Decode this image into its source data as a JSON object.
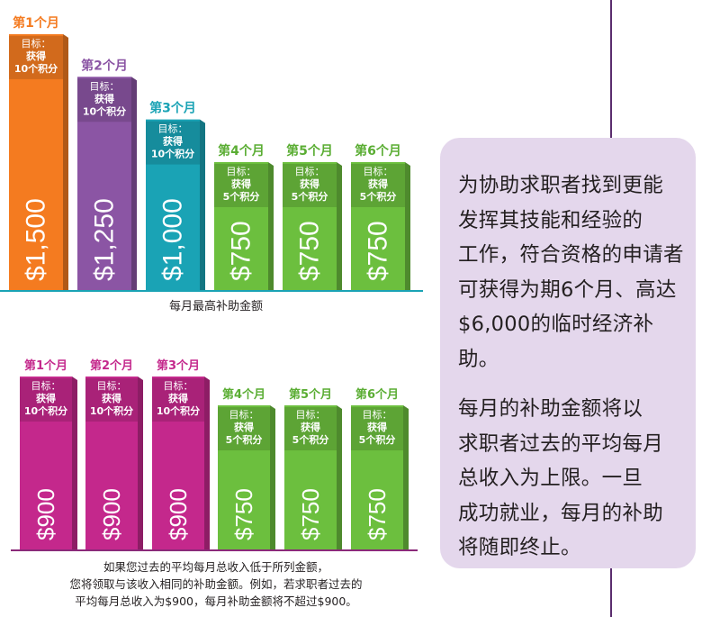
{
  "chart_data": [
    {
      "type": "bar",
      "categories": [
        "第1个月",
        "第2个月",
        "第3个月",
        "第4个月",
        "第5个月",
        "第6个月"
      ],
      "values": [
        1500,
        1250,
        1000,
        750,
        750,
        750
      ],
      "value_labels": [
        "$1,500",
        "$1,250",
        "$1,000",
        "$750",
        "$750",
        "$750"
      ],
      "targets": [
        [
          "目标：",
          "获得",
          "10个积分"
        ],
        [
          "目标：",
          "获得",
          "10个积分"
        ],
        [
          "目标：",
          "获得",
          "10个积分"
        ],
        [
          "目标：",
          "获得",
          "5个积分"
        ],
        [
          "目标：",
          "获得",
          "5个积分"
        ],
        [
          "目标：",
          "获得",
          "5个积分"
        ]
      ],
      "colors": [
        "#f47b20",
        "#8b55a4",
        "#1aa3b5",
        "#6cbf3e",
        "#6cbf3e",
        "#6cbf3e"
      ],
      "label_colors": [
        "#f47b20",
        "#8b55a4",
        "#1aa3b5",
        "#5aad33",
        "#5aad33",
        "#5aad33"
      ],
      "baseline_color": "#1aa3b5",
      "xlabel": "每月最高补助金额",
      "ylim": [
        0,
        1500
      ]
    },
    {
      "type": "bar",
      "categories": [
        "第1个月",
        "第2个月",
        "第3个月",
        "第4个月",
        "第5个月",
        "第6个月"
      ],
      "values": [
        900,
        900,
        900,
        750,
        750,
        750
      ],
      "value_labels": [
        "$900",
        "$900",
        "$900",
        "$750",
        "$750",
        "$750"
      ],
      "targets": [
        [
          "目标：",
          "获得",
          "10个积分"
        ],
        [
          "目标：",
          "获得",
          "10个积分"
        ],
        [
          "目标：",
          "获得",
          "10个积分"
        ],
        [
          "目标：",
          "获得",
          "5个积分"
        ],
        [
          "目标：",
          "获得",
          "5个积分"
        ],
        [
          "目标：",
          "获得",
          "5个积分"
        ]
      ],
      "colors": [
        "#c4288c",
        "#c4288c",
        "#c4288c",
        "#6cbf3e",
        "#6cbf3e",
        "#6cbf3e"
      ],
      "label_colors": [
        "#c4288c",
        "#c4288c",
        "#c4288c",
        "#5aad33",
        "#5aad33",
        "#5aad33"
      ],
      "baseline_color": "#8b2a7a",
      "caption": "如果您过去的平均每月总收入低于所列金额，\n您将领取与该收入相同的补助金额。例如，若求职者过去的\n平均每月总收入为$900，每月补助金额将不超过$900。",
      "ylim": [
        0,
        900
      ]
    }
  ],
  "info_box": {
    "paragraph_1": "为协助求职者找到更能\n发挥其技能和经验的\n工作，符合资格的申请者\n可获得为期6个月、高达\n$6,000的临时经济补助。",
    "paragraph_2": "每月的补助金额将以\n求职者过去的平均每月\n总收入为上限。一旦\n成功就业，每月的补助\n将随即终止。"
  },
  "colors": {
    "divider": "#5a2d6e",
    "info_box_bg": "#e4d7ec",
    "text": "#231f20"
  }
}
